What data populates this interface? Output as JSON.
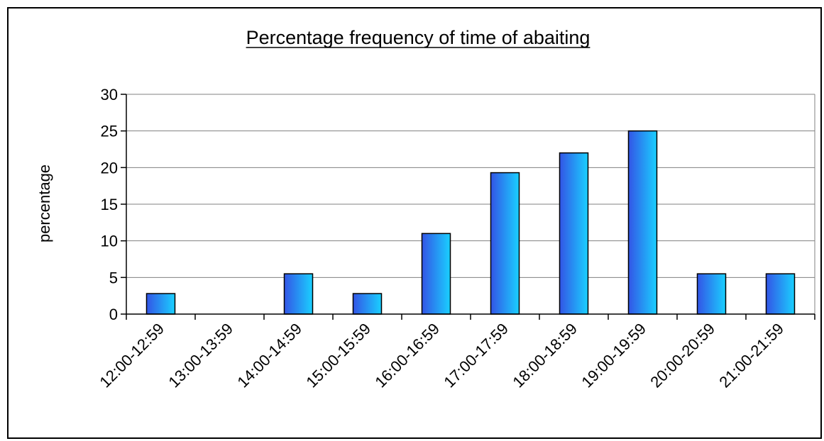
{
  "chart_data": {
    "type": "bar",
    "title": "Percentage frequency of time of abaiting",
    "xlabel": "",
    "ylabel": "percentage",
    "categories": [
      "12:00-12:59",
      "13:00-13:59",
      "14:00-14:59",
      "15:00-15:59",
      "16:00-16:59",
      "17:00-17:59",
      "18:00-18:59",
      "19:00-19:59",
      "20:00-20:59",
      "21:00-21:59"
    ],
    "values": [
      2.8,
      0,
      5.5,
      2.8,
      11,
      19.3,
      22,
      25,
      5.5,
      5.5
    ],
    "ylim": [
      0,
      30
    ],
    "yticks": [
      0,
      5,
      10,
      15,
      20,
      25,
      30
    ],
    "grid": true,
    "legend": "none",
    "colors": {
      "bar_left": "#3355e6",
      "bar_right": "#1ad0ff",
      "bar_stroke": "#000000",
      "grid": "#808080"
    }
  }
}
